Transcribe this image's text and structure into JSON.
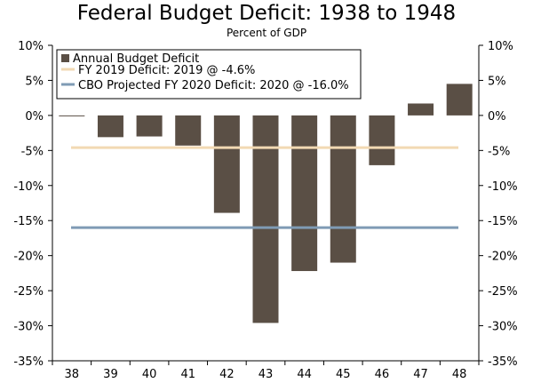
{
  "chart_data": {
    "type": "bar",
    "title": "Federal Budget Deficit: 1938 to 1948",
    "subtitle": "Percent of GDP",
    "xlabel": "",
    "ylabel": "",
    "ylim": [
      -35,
      10
    ],
    "yticks": [
      10,
      5,
      0,
      -5,
      -10,
      -15,
      -20,
      -25,
      -30,
      -35
    ],
    "ytick_labels": [
      "10%",
      "5%",
      "0%",
      "-5%",
      "-10%",
      "-15%",
      "-20%",
      "-25%",
      "-30%",
      "-35%"
    ],
    "categories": [
      "38",
      "39",
      "40",
      "41",
      "42",
      "43",
      "44",
      "45",
      "46",
      "47",
      "48"
    ],
    "series": [
      {
        "name": "Annual Budget Deficit",
        "values": [
          -0.1,
          -3.1,
          -3.0,
          -4.3,
          -13.9,
          -29.6,
          -22.2,
          -21.0,
          -7.1,
          1.7,
          4.5
        ],
        "color": "#5a4f45"
      }
    ],
    "reference_lines": [
      {
        "name": "FY 2019 Deficit: 2019 @ -4.6%",
        "value": -4.6,
        "color": "#f2d9b3"
      },
      {
        "name": "CBO Projected FY 2020 Deficit: 2020 @ -16.0%",
        "value": -16.0,
        "color": "#7f9bb5"
      }
    ],
    "grid": false,
    "legend_position": "top-left"
  }
}
